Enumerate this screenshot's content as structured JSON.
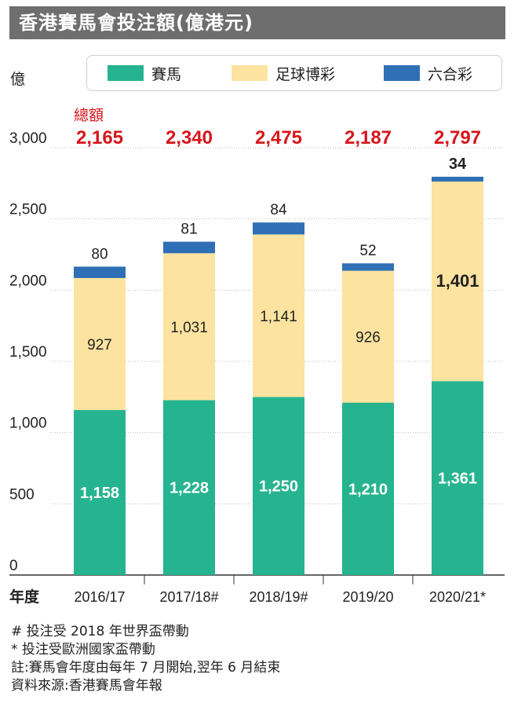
{
  "title": "香港賽馬會投注額(億港元)",
  "unit_label": "億",
  "total_caption": "總額",
  "xaxis_title": "年度",
  "legend": [
    {
      "label": "賽馬",
      "color": "#26b390"
    },
    {
      "label": "足球博彩",
      "color": "#fde3a0"
    },
    {
      "label": "六合彩",
      "color": "#2f6fb5"
    }
  ],
  "footnotes": [
    "# 投注受 2018 年世界盃帶動",
    "* 投注受歐洲國家盃帶動",
    "註:賽馬會年度由每年 7 月開始,翌年 6 月結束",
    "資料來源:香港賽馬會年報"
  ],
  "colors": {
    "total": "#d6151b",
    "grid": "#bdbdbd",
    "axis": "#333333"
  },
  "chart_data": {
    "type": "bar",
    "stacked": true,
    "title": "香港賽馬會投注額(億港元)",
    "ylabel": "億",
    "xlabel": "年度",
    "ylim": [
      0,
      3000
    ],
    "yticks": [
      0,
      500,
      1000,
      1500,
      2000,
      2500,
      3000
    ],
    "ytick_labels": [
      "0",
      "500",
      "1,000",
      "1,500",
      "2,000",
      "2,500",
      "3,000"
    ],
    "grid": true,
    "legend_position": "top",
    "categories": [
      "2016/17",
      "2017/18#",
      "2018/19#",
      "2019/20",
      "2020/21*"
    ],
    "totals": [
      2165,
      2340,
      2475,
      2187,
      2797
    ],
    "total_labels": [
      "2,165",
      "2,340",
      "2,475",
      "2,187",
      "2,797"
    ],
    "series": [
      {
        "name": "賽馬",
        "color": "#26b390",
        "values": [
          1158,
          1228,
          1250,
          1210,
          1361
        ],
        "labels": [
          "1,158",
          "1,228",
          "1,250",
          "1,210",
          "1,361"
        ]
      },
      {
        "name": "足球博彩",
        "color": "#fde3a0",
        "values": [
          927,
          1031,
          1141,
          926,
          1401
        ],
        "labels": [
          "927",
          "1,031",
          "1,141",
          "926",
          "1,401"
        ]
      },
      {
        "name": "六合彩",
        "color": "#2f6fb5",
        "values": [
          80,
          81,
          84,
          52,
          34
        ],
        "labels": [
          "80",
          "81",
          "84",
          "52",
          "34"
        ]
      }
    ]
  }
}
